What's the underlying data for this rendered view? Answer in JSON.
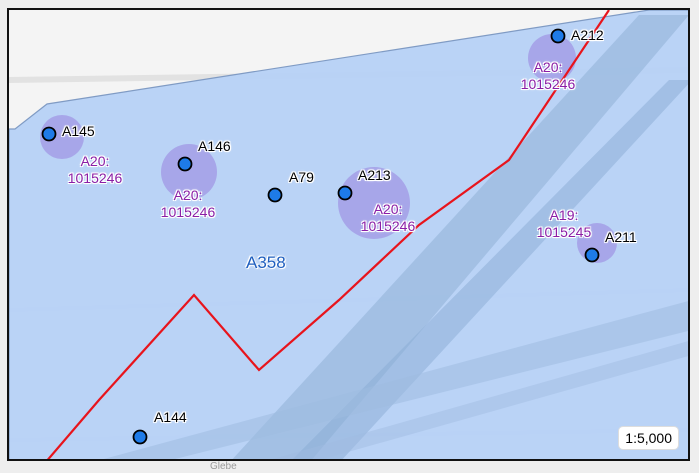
{
  "map": {
    "scale": "1:5,000",
    "area_label": "A358",
    "background_text": "Glebe",
    "points": [
      {
        "id": "A145"
      },
      {
        "id": "A146",
        "sublabel_line1": "A20:",
        "sublabel_line2": "1015246"
      },
      {
        "id": "A79"
      },
      {
        "id": "A213",
        "sublabel_line1": "A20:",
        "sublabel_line2": "1015246"
      },
      {
        "id": "A212",
        "sublabel_line1": "A20:",
        "sublabel_line2": "1015246"
      },
      {
        "id": "A211",
        "sublabel_line1": "A19:",
        "sublabel_line2": "1015245"
      },
      {
        "id": "A144"
      }
    ],
    "extra_label": {
      "line1": "A20:",
      "line2": "1015246"
    },
    "colors": {
      "area_fill": "#b7d2f7",
      "point_fill": "#1e7be8",
      "halo": "#a29be6",
      "boundary_line": "#e8141c",
      "sublabel": "#8b1ea6"
    }
  }
}
